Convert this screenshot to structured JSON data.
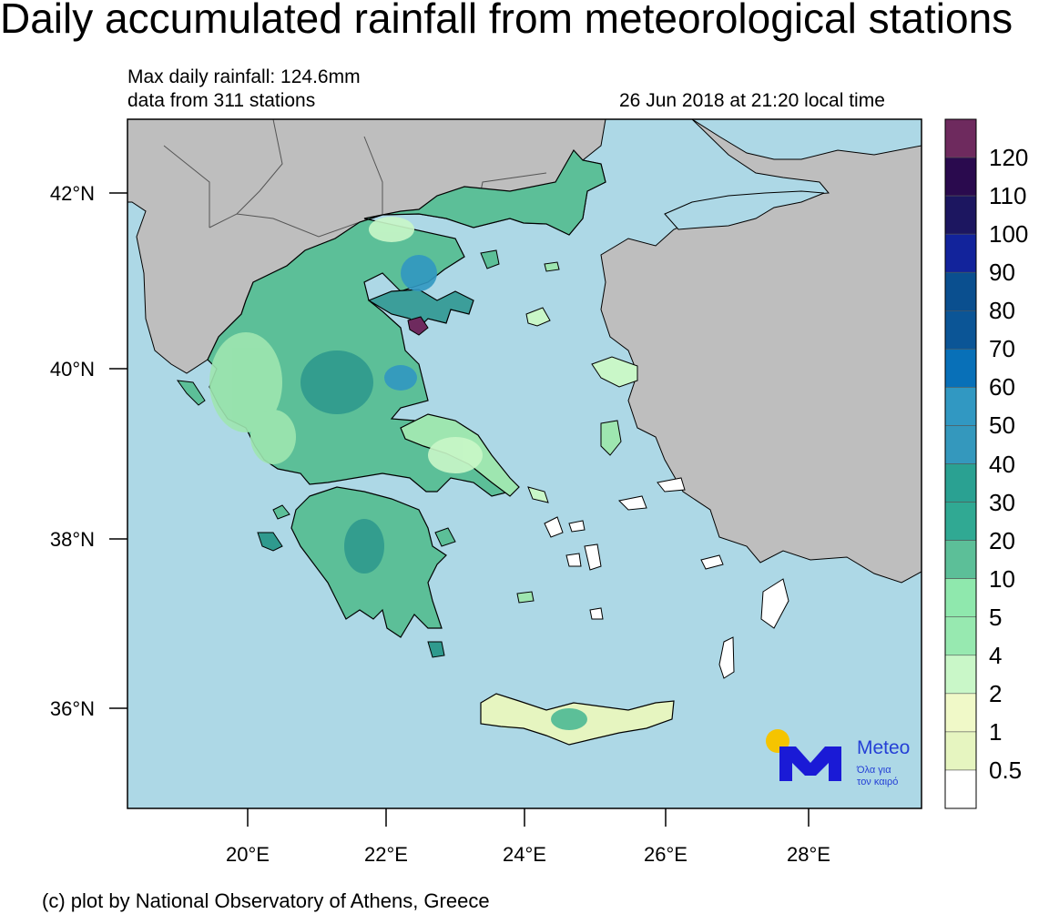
{
  "title": "Daily accumulated rainfall from meteorological stations",
  "info": {
    "max_rainfall": "Max daily rainfall: 124.6mm",
    "stations": "data from 311 stations",
    "timestamp": "26 Jun 2018 at 21:20 local time"
  },
  "credit": "(c) plot by National Observatory of Athens, Greece",
  "axes": {
    "lat_labels": [
      "42°N",
      "40°N",
      "38°N",
      "36°N"
    ],
    "lon_labels": [
      "20°E",
      "22°E",
      "24°E",
      "26°E",
      "28°E"
    ]
  },
  "legend": {
    "labels": [
      "120",
      "110",
      "100",
      "90",
      "80",
      "70",
      "60",
      "50",
      "40",
      "30",
      "20",
      "10",
      "5",
      "4",
      "2",
      "1",
      "0.5"
    ],
    "colors": [
      "#6e2a5e",
      "#2a0a4e",
      "#1c1660",
      "#12239b",
      "#0a4f8f",
      "#0b5596",
      "#0870b8",
      "#3198c2",
      "#3498bd",
      "#2aa192",
      "#30a993",
      "#5cbf98",
      "#8fe8ad",
      "#97e9b0",
      "#c9f7c8",
      "#f0f9c8",
      "#e6f5c0",
      "#ffffff"
    ]
  },
  "colors": {
    "sea": "#add8e6",
    "land_foreign": "#bebebe",
    "greece_base": "#5cbf98",
    "greece_light": "#9ee6b0",
    "greece_dark": "#2f9a8e"
  },
  "logo": {
    "brand": "Meteo",
    "tagline_1": "Όλα για",
    "tagline_2": "τον καιρό",
    "color": "#1a1ad6",
    "sun_color": "#f5c400"
  }
}
